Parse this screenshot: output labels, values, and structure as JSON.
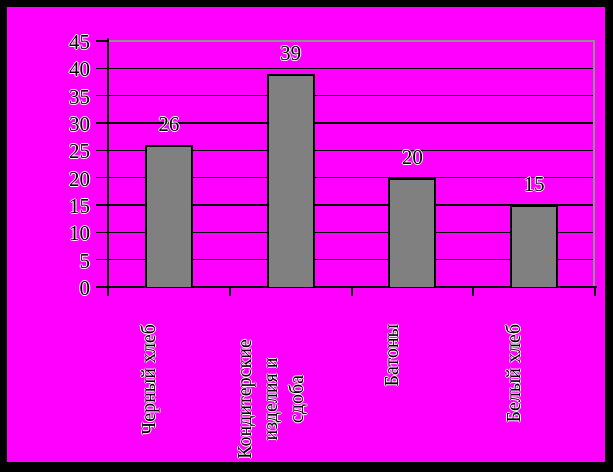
{
  "chart_data": {
    "type": "bar",
    "title": "",
    "xlabel": "",
    "ylabel": "",
    "categories": [
      "Черный хлеб",
      "Кондитерские изделия и сдоба",
      "Батоны",
      "Белый хлеб"
    ],
    "category_display_lines": [
      [
        "Черный хлеб"
      ],
      [
        "Кондитерские",
        "изделия и",
        "сдоба"
      ],
      [
        "Батоны"
      ],
      [
        "Белый хлеб"
      ]
    ],
    "values": [
      26,
      39,
      20,
      15
    ],
    "value_labels": [
      "26",
      "39",
      "20",
      "15"
    ],
    "ylim": [
      0,
      45
    ],
    "ytick_interval": 5,
    "ytick_labels": [
      "0",
      "5",
      "10",
      "15",
      "20",
      "25",
      "30",
      "35",
      "40",
      "45"
    ],
    "grid": true,
    "legend": "none",
    "category_label_rotation_deg": -90,
    "colors": {
      "background": "#FF00FF",
      "frame": "#000000",
      "bar_fill": "#808080",
      "bar_border": "#000000",
      "gridline": "#000000",
      "axis": "#000000",
      "plot_border": "#909090",
      "text": "#000000",
      "text_halo": "#FFFFFF"
    }
  }
}
